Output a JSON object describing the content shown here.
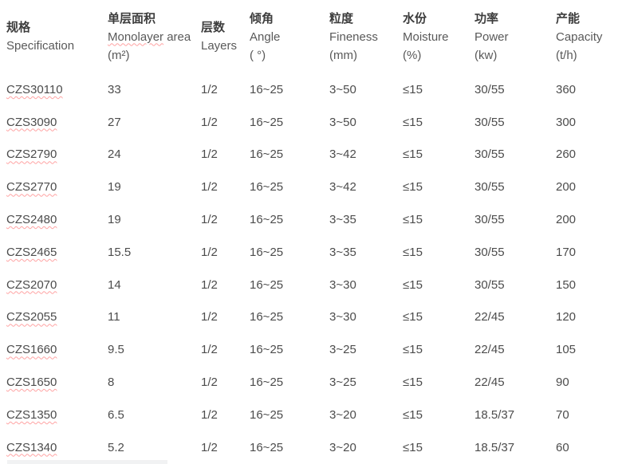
{
  "table": {
    "columns": [
      {
        "zh": "规格",
        "en": "Specification",
        "en_rest": "",
        "unit": "",
        "misspelled": false
      },
      {
        "zh": "单层面积",
        "en": "Monolayer",
        "en_rest": " area",
        "unit": "(m²)",
        "misspelled": true
      },
      {
        "zh": "层数",
        "en": "Layers",
        "en_rest": "",
        "unit": "",
        "misspelled": false
      },
      {
        "zh": "倾角",
        "en": "Angle",
        "en_rest": "",
        "unit": "( °)",
        "misspelled": false
      },
      {
        "zh": "粒度",
        "en": "Fineness",
        "en_rest": "",
        "unit": "(mm)",
        "misspelled": false
      },
      {
        "zh": "水份",
        "en": "Moisture",
        "en_rest": "",
        "unit": "(%)",
        "misspelled": false
      },
      {
        "zh": "功率",
        "en": "Power",
        "en_rest": "",
        "unit": "(kw)",
        "misspelled": false
      },
      {
        "zh": "产能",
        "en": "Capacity",
        "en_rest": "",
        "unit": "(t/h)",
        "misspelled": false
      }
    ],
    "rows": [
      {
        "spec": "CZS30110",
        "monolayer_area": "33",
        "layers": "1/2",
        "angle": "16~25",
        "fineness": "3~50",
        "moisture": "≤15",
        "power": "30/55",
        "capacity": "360"
      },
      {
        "spec": "CZS3090",
        "monolayer_area": "27",
        "layers": "1/2",
        "angle": "16~25",
        "fineness": "3~50",
        "moisture": "≤15",
        "power": "30/55",
        "capacity": "300"
      },
      {
        "spec": "CZS2790",
        "monolayer_area": "24",
        "layers": "1/2",
        "angle": "16~25",
        "fineness": "3~42",
        "moisture": "≤15",
        "power": "30/55",
        "capacity": "260"
      },
      {
        "spec": "CZS2770",
        "monolayer_area": "19",
        "layers": "1/2",
        "angle": "16~25",
        "fineness": "3~42",
        "moisture": "≤15",
        "power": "30/55",
        "capacity": "200"
      },
      {
        "spec": "CZS2480",
        "monolayer_area": "19",
        "layers": "1/2",
        "angle": "16~25",
        "fineness": "3~35",
        "moisture": "≤15",
        "power": "30/55",
        "capacity": "200"
      },
      {
        "spec": "CZS2465",
        "monolayer_area": "15.5",
        "layers": "1/2",
        "angle": "16~25",
        "fineness": "3~35",
        "moisture": "≤15",
        "power": "30/55",
        "capacity": "170"
      },
      {
        "spec": "CZS2070",
        "monolayer_area": "14",
        "layers": "1/2",
        "angle": "16~25",
        "fineness": "3~30",
        "moisture": "≤15",
        "power": "30/55",
        "capacity": "150"
      },
      {
        "spec": "CZS2055",
        "monolayer_area": "11",
        "layers": "1/2",
        "angle": "16~25",
        "fineness": "3~30",
        "moisture": "≤15",
        "power": "22/45",
        "capacity": "120"
      },
      {
        "spec": "CZS1660",
        "monolayer_area": "9.5",
        "layers": "1/2",
        "angle": "16~25",
        "fineness": "3~25",
        "moisture": "≤15",
        "power": "22/45",
        "capacity": "105"
      },
      {
        "spec": "CZS1650",
        "monolayer_area": "8",
        "layers": "1/2",
        "angle": "16~25",
        "fineness": "3~25",
        "moisture": "≤15",
        "power": "22/45",
        "capacity": "90"
      },
      {
        "spec": "CZS1350",
        "monolayer_area": "6.5",
        "layers": "1/2",
        "angle": "16~25",
        "fineness": "3~20",
        "moisture": "≤15",
        "power": "18.5/37",
        "capacity": "70"
      },
      {
        "spec": "CZS1340",
        "monolayer_area": "5.2",
        "layers": "1/2",
        "angle": "16~25",
        "fineness": "3~20",
        "moisture": "≤15",
        "power": "18.5/37",
        "capacity": "60"
      }
    ]
  },
  "colors": {
    "background": "#ffffff",
    "header_zh_text": "#3d3d3d",
    "header_en_text": "#595959",
    "body_text": "#4c4c4c",
    "spellcheck_squiggle": "#ffa3a3",
    "partial_row_bar": "#f1f2f3"
  }
}
